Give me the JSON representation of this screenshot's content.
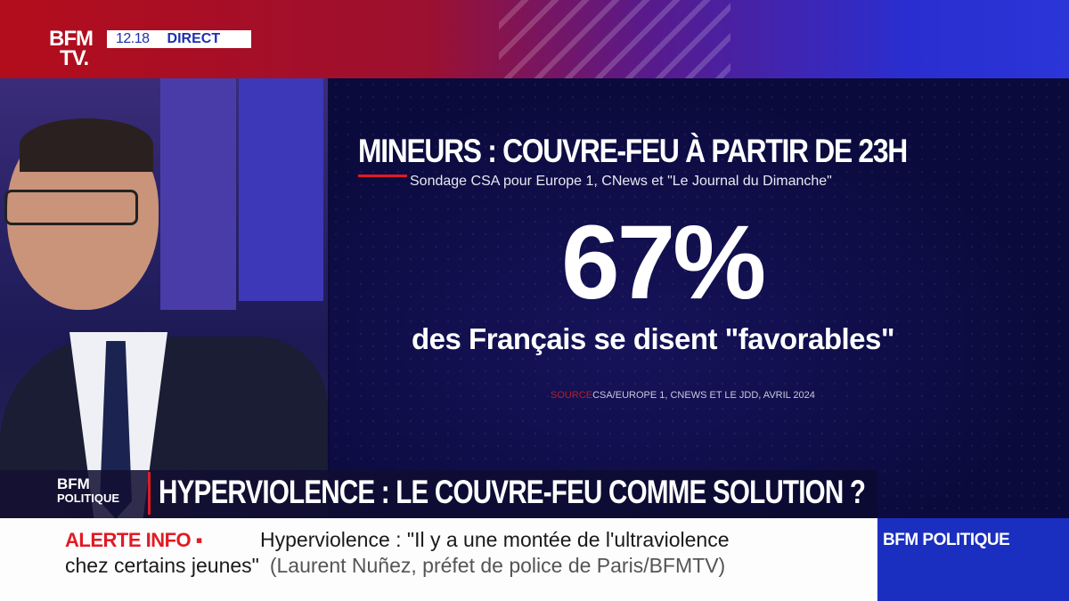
{
  "header": {
    "logo_line1": "BFM",
    "logo_line2": "TV.",
    "time": "12.18",
    "live_label": "DIRECT"
  },
  "graphic": {
    "title": "MINEURS : COUVRE-FEU À PARTIR DE 23H",
    "subtitle": "Sondage CSA pour Europe 1, CNews et \"Le Journal du Dimanche\"",
    "percentage": "67%",
    "description": "des Français se disent \"favorables\"",
    "source_label": "SOURCE",
    "source_text": "CSA/EUROPE 1, CNEWS ET LE JDD, AVRIL 2024"
  },
  "lower_third": {
    "show_line1": "BFM",
    "show_line2": "POLITIQUE",
    "headline": "HYPERVIOLENCE : LE COUVRE-FEU COMME SOLUTION ?"
  },
  "ticker": {
    "alert_label": "ALERTE INFO ▪",
    "line1": "Hyperviolence : \"Il y a une montée de l'ultraviolence",
    "line2": "chez certains jeunes\"",
    "credit": "(Laurent Nuñez, préfet de police de Paris/BFMTV)"
  },
  "channel_tag": "BFM POLITIQUE",
  "colors": {
    "brand_red": "#e01b24",
    "brand_blue": "#1a2fc0",
    "panel_navy": "#0c0c40"
  }
}
